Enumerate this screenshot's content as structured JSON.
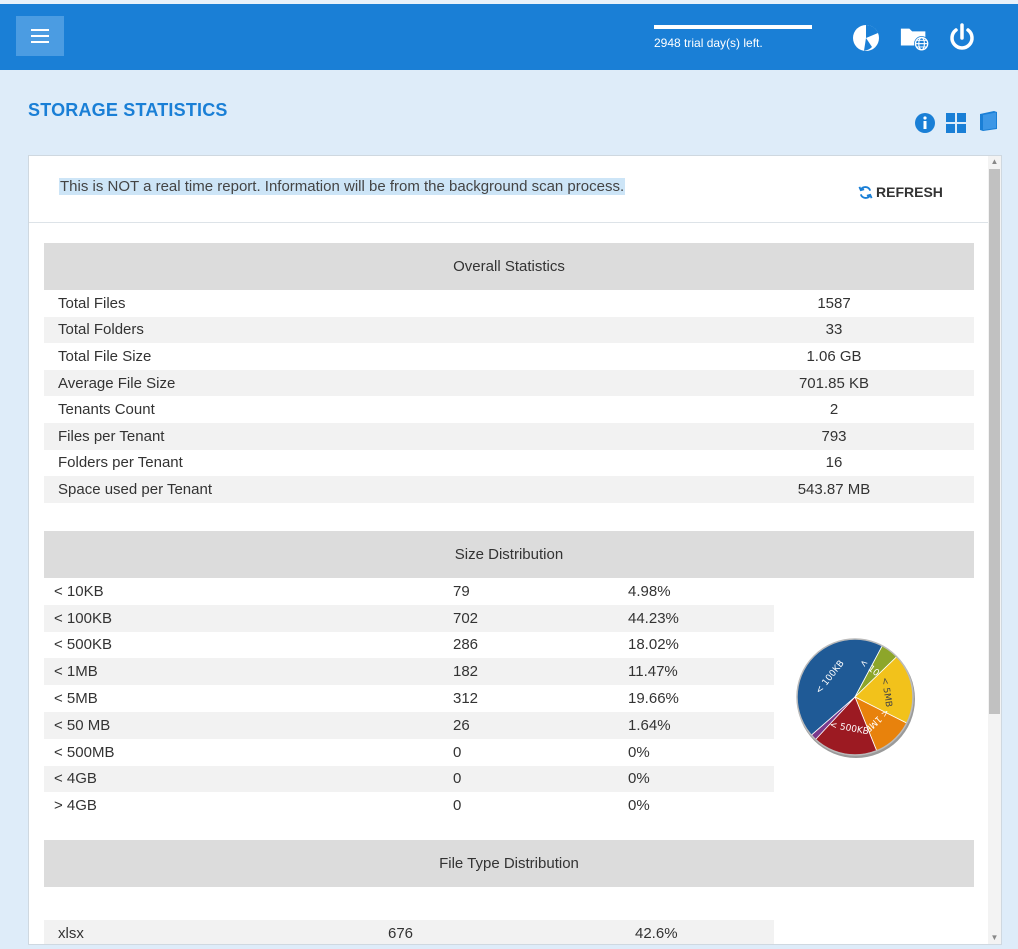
{
  "header": {
    "trial_text": "2948 trial day(s) left.",
    "trial_progress": 1.0,
    "icons": [
      "pie-chart-icon",
      "network-folder-icon",
      "power-icon"
    ]
  },
  "page": {
    "title": "STORAGE STATISTICS",
    "title_icons": [
      "info-icon",
      "grid-view-icon",
      "book-icon"
    ]
  },
  "notice": "This is NOT a real time report. Information will be from the background scan process.",
  "refresh_label": "REFRESH",
  "overall": {
    "heading": "Overall Statistics",
    "rows": [
      {
        "label": "Total Files",
        "value": "1587"
      },
      {
        "label": "Total Folders",
        "value": "33"
      },
      {
        "label": "Total File Size",
        "value": "1.06 GB"
      },
      {
        "label": "Average File Size",
        "value": "701.85 KB"
      },
      {
        "label": "Tenants Count",
        "value": "2"
      },
      {
        "label": "Files per Tenant",
        "value": "793"
      },
      {
        "label": "Folders per Tenant",
        "value": "16"
      },
      {
        "label": "Space used per Tenant",
        "value": "543.87 MB"
      }
    ]
  },
  "size_distribution": {
    "heading": "Size Distribution",
    "rows": [
      {
        "label": "< 10KB",
        "count": "79",
        "percent": "4.98%"
      },
      {
        "label": "< 100KB",
        "count": "702",
        "percent": "44.23%"
      },
      {
        "label": "< 500KB",
        "count": "286",
        "percent": "18.02%"
      },
      {
        "label": "< 1MB",
        "count": "182",
        "percent": "11.47%"
      },
      {
        "label": "< 5MB",
        "count": "312",
        "percent": "19.66%"
      },
      {
        "label": "< 50 MB",
        "count": "26",
        "percent": "1.64%"
      },
      {
        "label": "< 500MB",
        "count": "0",
        "percent": "0%"
      },
      {
        "label": "< 4GB",
        "count": "0",
        "percent": "0%"
      },
      {
        "label": "> 4GB",
        "count": "0",
        "percent": "0%"
      }
    ],
    "pie": [
      {
        "label": "< 100KB",
        "value": 44.23,
        "color": "#1f5a96"
      },
      {
        "label": "< 10KB",
        "value": 4.98,
        "color": "#8da62a"
      },
      {
        "label": "< 5MB",
        "value": 19.66,
        "color": "#f2c21b"
      },
      {
        "label": "< 1MB",
        "value": 11.47,
        "color": "#e8820c"
      },
      {
        "label": "< 500KB",
        "value": 18.02,
        "color": "#9c1a22"
      },
      {
        "label": "",
        "value": 1.64,
        "color": "#7a3a8c"
      }
    ]
  },
  "file_type_distribution": {
    "heading": "File Type Distribution",
    "rows": [
      {
        "label": "xlsx",
        "count": "676",
        "percent": "42.6%"
      }
    ]
  }
}
